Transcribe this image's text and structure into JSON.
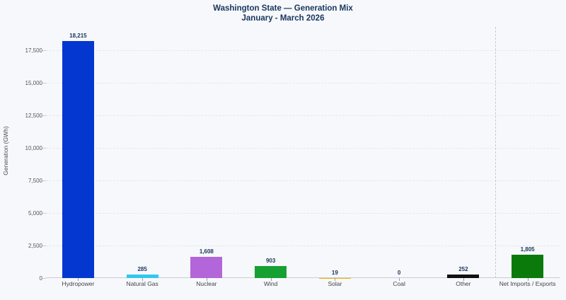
{
  "header": {
    "title": "Washington State — Generation Mix",
    "subtitle": "January - March 2026"
  },
  "chart_data": {
    "type": "bar",
    "title": "Washington State — Generation Mix",
    "subtitle": "January - March 2026",
    "xlabel": "",
    "ylabel": "Generation (GWh)",
    "categories": [
      "Hydropower",
      "Natural Gas",
      "Nuclear",
      "Wind",
      "Solar",
      "Coal",
      "Other",
      "Net Imports / Exports"
    ],
    "values": [
      18215,
      285,
      1608,
      903,
      19,
      0,
      252,
      1805
    ],
    "value_labels": [
      "18,215",
      "285",
      "1,608",
      "903",
      "19",
      "0",
      "252",
      "1,805"
    ],
    "bar_colors": [
      "#0437cf",
      "#33c7f0",
      "#b266d9",
      "#16a034",
      "#f2b705",
      "#666666",
      "#111111",
      "#0a7a0a"
    ],
    "ylim": [
      0,
      19300
    ],
    "yticks": [
      0,
      2500,
      5000,
      7500,
      10000,
      12500,
      15000,
      17500
    ],
    "ytick_labels": [
      "0",
      "2,500",
      "5,000",
      "7,500",
      "10,000",
      "12,500",
      "15,000",
      "17,500"
    ],
    "grid": "horizontal-dashed",
    "legend": "none",
    "separator_after_index": 6,
    "colors": {
      "title_text": "#17365d",
      "value_label_text": "#17365d",
      "tick_text": "#54565e",
      "background": "#f7f8fb",
      "gridline": "#e4e7ee",
      "axis_line": "#c9ccd4",
      "separator_line": "#c6c9d1"
    }
  }
}
